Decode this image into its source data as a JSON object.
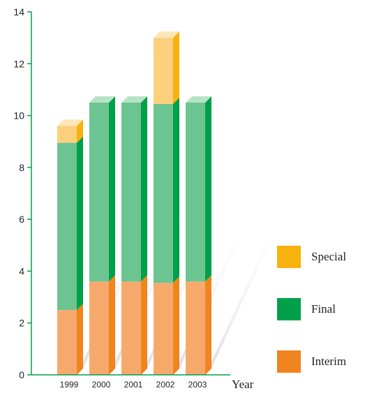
{
  "chart_data": {
    "type": "bar",
    "stacked": true,
    "style": "3d",
    "categories": [
      "1999",
      "2000",
      "2001",
      "2002",
      "2003"
    ],
    "series": [
      {
        "name": "Interim",
        "values": [
          2.5,
          3.6,
          3.6,
          3.55,
          3.6
        ],
        "front_color": "#f7a96c",
        "side_color": "#f0841f",
        "top_color": "#f9c9a0"
      },
      {
        "name": "Final",
        "values": [
          6.45,
          6.9,
          6.9,
          6.9,
          6.9
        ],
        "front_color": "#6cc490",
        "side_color": "#00a04a",
        "top_color": "#b5e3c6"
      },
      {
        "name": "Special",
        "values": [
          0.65,
          0,
          0,
          2.55,
          0
        ],
        "front_color": "#fdd07e",
        "side_color": "#f8b20e",
        "top_color": "#fde6b8"
      }
    ],
    "ylim": [
      0,
      14
    ],
    "yticks": [
      "0",
      "2",
      "4",
      "6",
      "8",
      "10",
      "12",
      "14"
    ],
    "xlabel": "Year",
    "ylabel": "",
    "axis_color": "#00a04a",
    "legend_position": "right",
    "legend_order": [
      "Special",
      "Final",
      "Interim"
    ]
  }
}
